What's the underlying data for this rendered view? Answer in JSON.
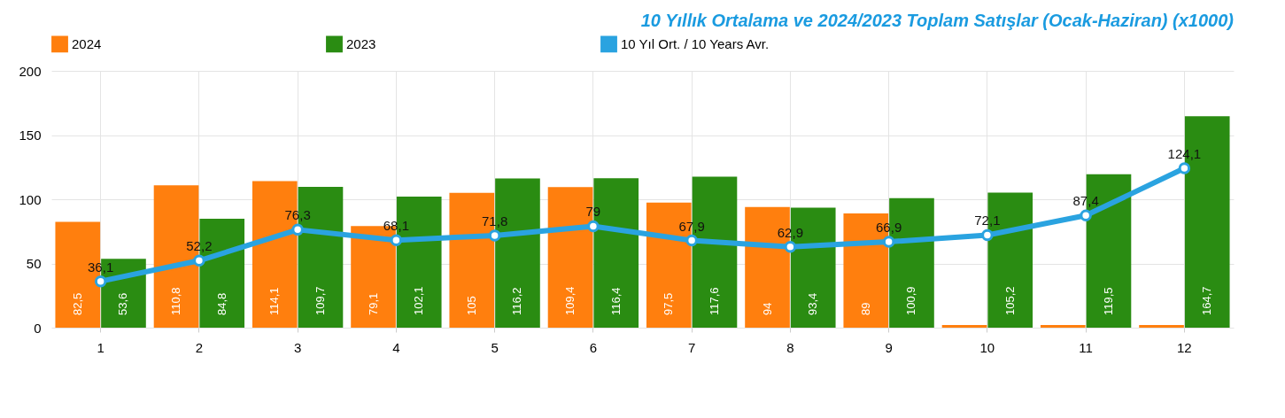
{
  "chart_data": {
    "type": "bar",
    "title": "10 Yıllık Ortalama ve 2024/2023 Toplam Satışlar (Ocak-Haziran) (x1000)",
    "categories": [
      "1",
      "2",
      "3",
      "4",
      "5",
      "6",
      "7",
      "8",
      "9",
      "10",
      "11",
      "12"
    ],
    "series": [
      {
        "name": "2024",
        "color": "#ff7f0e",
        "values": [
          82.5,
          110.8,
          114.1,
          79.1,
          105,
          109.4,
          97.5,
          94,
          89,
          2,
          2,
          2
        ],
        "value_labels": [
          "82,5",
          "110,8",
          "114,1",
          "79,1",
          "105",
          "109,4",
          "97,5",
          "94",
          "89",
          null,
          null,
          null
        ]
      },
      {
        "name": "2023",
        "color": "#2a8c12",
        "values": [
          53.6,
          84.8,
          109.7,
          102.1,
          116.2,
          116.4,
          117.6,
          93.4,
          100.9,
          105.2,
          119.5,
          164.7
        ],
        "value_labels": [
          "53,6",
          "84,8",
          "109,7",
          "102,1",
          "116,2",
          "116,4",
          "117,6",
          "93,4",
          "100,9",
          "105,2",
          "119,5",
          "164,7"
        ]
      },
      {
        "name": "10 Yıl Ort. / 10 Years Avr.",
        "type": "line",
        "color": "#2aa3e0",
        "marker": "circle",
        "values": [
          36.1,
          52.2,
          76.3,
          68.1,
          71.8,
          79,
          67.9,
          62.9,
          66.9,
          72.1,
          87.4,
          124.1
        ],
        "value_labels": [
          "36,1",
          "52,2",
          "76,3",
          "68,1",
          "71,8",
          "79",
          "67,9",
          "62,9",
          "66,9",
          "72,1",
          "87,4",
          "124,1"
        ]
      }
    ],
    "ylim": [
      0,
      200
    ],
    "yticks": [
      0,
      50,
      100,
      150,
      200
    ],
    "grid": true,
    "legend": "top"
  }
}
